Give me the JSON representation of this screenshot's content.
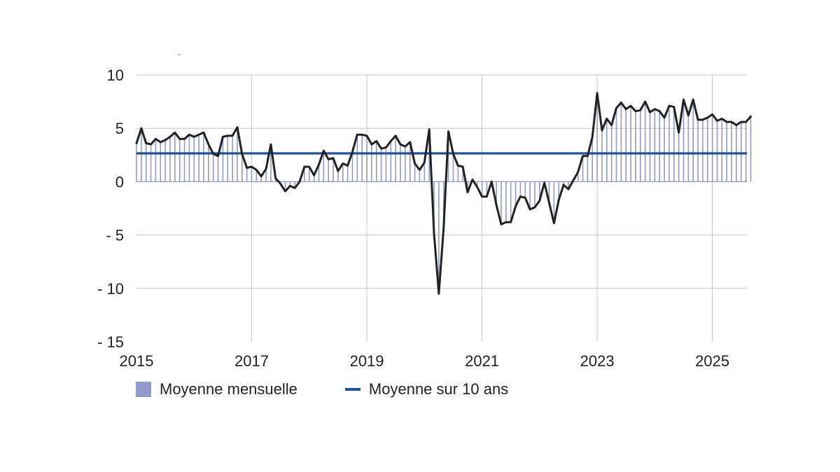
{
  "chart_data": {
    "type": "bar+line",
    "title": "",
    "xlabel": "",
    "ylabel": "",
    "ylim": [
      -15,
      10
    ],
    "yticks": [
      10,
      5,
      0,
      -5,
      -10,
      -15
    ],
    "ytick_labels": [
      "10",
      "5",
      "0",
      "- 5",
      "- 10",
      "- 15"
    ],
    "xlim": [
      2015,
      2025.6
    ],
    "xticks": [
      2015,
      2017,
      2019,
      2021,
      2023,
      2025
    ],
    "xtick_labels": [
      "2015",
      "2017",
      "2019",
      "2021",
      "2023",
      "2025"
    ],
    "grid": true,
    "series": [
      {
        "name": "Moyenne mensuelle",
        "style": "bars+line",
        "x_start": 2015.0,
        "x_step": 0.0833333,
        "values": [
          3.6,
          5.0,
          3.6,
          3.5,
          4.0,
          3.7,
          3.9,
          4.2,
          4.6,
          4.0,
          4.0,
          4.4,
          4.2,
          4.4,
          4.6,
          3.5,
          2.6,
          2.4,
          4.2,
          4.3,
          4.3,
          5.1,
          2.6,
          1.3,
          1.4,
          1.1,
          0.5,
          1.2,
          3.5,
          0.3,
          -0.2,
          -0.9,
          -0.4,
          -0.6,
          0.0,
          1.4,
          1.4,
          0.6,
          1.6,
          2.9,
          2.1,
          2.2,
          1.0,
          1.7,
          1.5,
          2.8,
          4.4,
          4.4,
          4.3,
          3.5,
          3.8,
          3.1,
          3.2,
          3.8,
          4.3,
          3.5,
          3.3,
          3.7,
          1.7,
          1.1,
          1.8,
          4.9,
          -4.8,
          -10.5,
          -4.4,
          4.7,
          2.6,
          1.5,
          1.4,
          -1.0,
          0.2,
          -0.5,
          -1.4,
          -1.4,
          0.0,
          -2.2,
          -4.0,
          -3.8,
          -3.8,
          -2.3,
          -1.4,
          -1.5,
          -2.6,
          -2.4,
          -1.8,
          -0.1,
          -2.0,
          -3.9,
          -1.7,
          -0.3,
          -0.7,
          0.1,
          0.9,
          2.4,
          2.4,
          4.2,
          8.3,
          4.8,
          5.9,
          5.3,
          6.9,
          7.4,
          6.8,
          7.1,
          6.6,
          6.7,
          7.5,
          6.5,
          6.8,
          6.6,
          6.0,
          7.1,
          7.0,
          4.6,
          7.7,
          6.2,
          7.7,
          5.8,
          5.8,
          6.0,
          6.3,
          5.7,
          5.9,
          5.6,
          5.6,
          5.3,
          5.6,
          5.6,
          6.1
        ],
        "bar_color": "#8f9acd",
        "line_color": "#222222"
      },
      {
        "name": "Moyenne sur 10 ans",
        "style": "hline",
        "value": 2.65,
        "color": "#1f5596"
      }
    ],
    "legend_position": "bottom-left"
  },
  "legend": {
    "monthly_label": "Moyenne mensuelle",
    "avg_label": "Moyenne sur 10 ans"
  },
  "stray_mark": "-"
}
